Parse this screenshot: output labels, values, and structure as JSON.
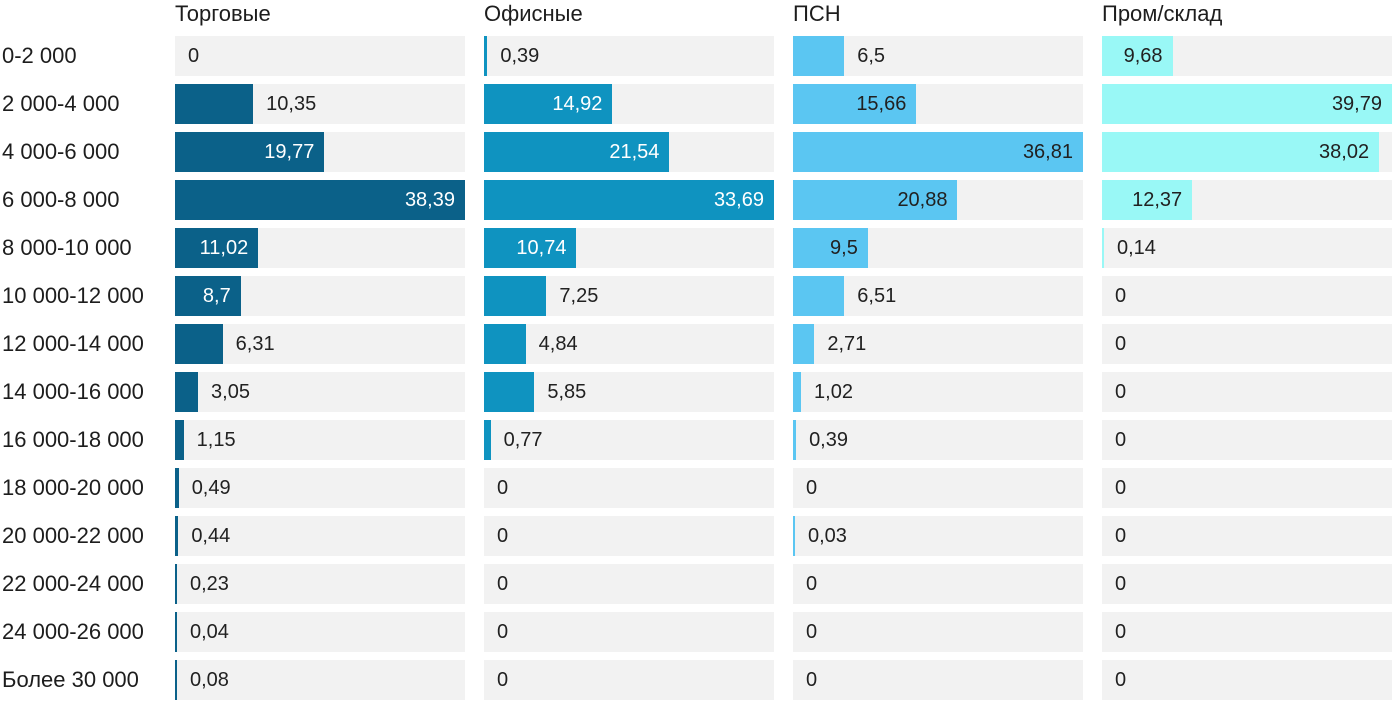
{
  "chart_data": {
    "type": "bar",
    "orientation": "horizontal",
    "grid": false,
    "legend_position": "none",
    "title": "",
    "xlabel": "",
    "ylabel": "",
    "track_color": "#f2f2f2",
    "text_color": "#1d1d1d",
    "value_text_color": "#212121",
    "categories": [
      "0-2 000",
      "2 000-4 000",
      "4 000-6 000",
      "6 000-8 000",
      "8 000-10 000",
      "10 000-12 000",
      "12 000-14 000",
      "14 000-16 000",
      "16 000-18 000",
      "18 000-20 000",
      "20 000-22 000",
      "22 000-24 000",
      "24 000-26 000",
      "Более 30 000"
    ],
    "series": [
      {
        "name": "Торговые",
        "color": "#0b6189",
        "label_inside_color": "#ffffff",
        "values": [
          0,
          10.35,
          19.77,
          38.39,
          11.02,
          8.7,
          6.31,
          3.05,
          1.15,
          0.49,
          0.44,
          0.23,
          0.04,
          0.08
        ],
        "labels": [
          "0",
          "10,35",
          "19,77",
          "38,39",
          "11,02",
          "8,7",
          "6,31",
          "3,05",
          "1,15",
          "0,49",
          "0,44",
          "0,23",
          "0,04",
          "0,08"
        ]
      },
      {
        "name": "Офисные",
        "color": "#0f93c0",
        "label_inside_color": "#ffffff",
        "values": [
          0.39,
          14.92,
          21.54,
          33.69,
          10.74,
          7.25,
          4.84,
          5.85,
          0.77,
          0,
          0,
          0,
          0,
          0
        ],
        "labels": [
          "0,39",
          "14,92",
          "21,54",
          "33,69",
          "10,74",
          "7,25",
          "4,84",
          "5,85",
          "0,77",
          "0",
          "0",
          "0",
          "0",
          "0"
        ]
      },
      {
        "name": "ПСН",
        "color": "#5bc6f2",
        "label_inside_color": "#212121",
        "values": [
          6.5,
          15.66,
          36.81,
          20.88,
          9.5,
          6.51,
          2.71,
          1.02,
          0.39,
          0,
          0.03,
          0,
          0,
          0
        ],
        "labels": [
          "6,5",
          "15,66",
          "36,81",
          "20,88",
          "9,5",
          "6,51",
          "2,71",
          "1,02",
          "0,39",
          "0",
          "0,03",
          "0",
          "0",
          "0"
        ]
      },
      {
        "name": "Пром/склад",
        "color": "#99f8f6",
        "label_inside_color": "#212121",
        "values": [
          9.68,
          39.79,
          38.02,
          12.37,
          0.14,
          0,
          0,
          0,
          0,
          0,
          0,
          0,
          0,
          0
        ],
        "labels": [
          "9,68",
          "39,79",
          "38,02",
          "12,37",
          "0,14",
          "0",
          "0",
          "0",
          "0",
          "0",
          "0",
          "0",
          "0",
          "0"
        ]
      }
    ]
  }
}
